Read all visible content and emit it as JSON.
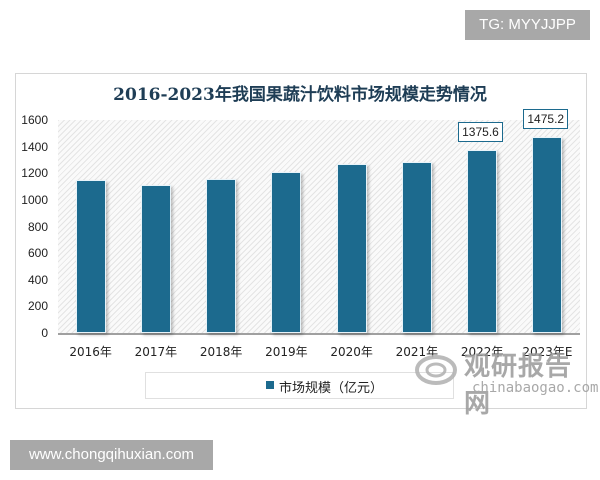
{
  "watermark_top": "TG: MYYJJPP",
  "watermark_bottom": "www.chongqihuxian.com",
  "watermark_brand": {
    "cn": "观研报告网",
    "en": "chinabaogao.com"
  },
  "colors": {
    "bar": "#1c6a8e",
    "title": "#1e3d55"
  },
  "chart_data": {
    "type": "bar",
    "title": "2016-2023年我国果蔬汁饮料市场规模走势情况",
    "categories": [
      "2016年",
      "2017年",
      "2018年",
      "2019年",
      "2020年",
      "2021年",
      "2022年",
      "2023年E"
    ],
    "series": [
      {
        "name": "市场规模（亿元）",
        "values": [
          1150,
          1110,
          1160,
          1210,
          1270,
          1285,
          1375.6,
          1475.2
        ]
      }
    ],
    "data_labels": {
      "2022年": "1375.6",
      "2023年E": "1475.2"
    },
    "yticks": [
      "0",
      "200",
      "400",
      "600",
      "800",
      "1000",
      "1200",
      "1400",
      "1600"
    ],
    "ylim": [
      0,
      1600
    ],
    "xlabel": "",
    "ylabel": "",
    "legend_position": "bottom",
    "grid": false
  }
}
